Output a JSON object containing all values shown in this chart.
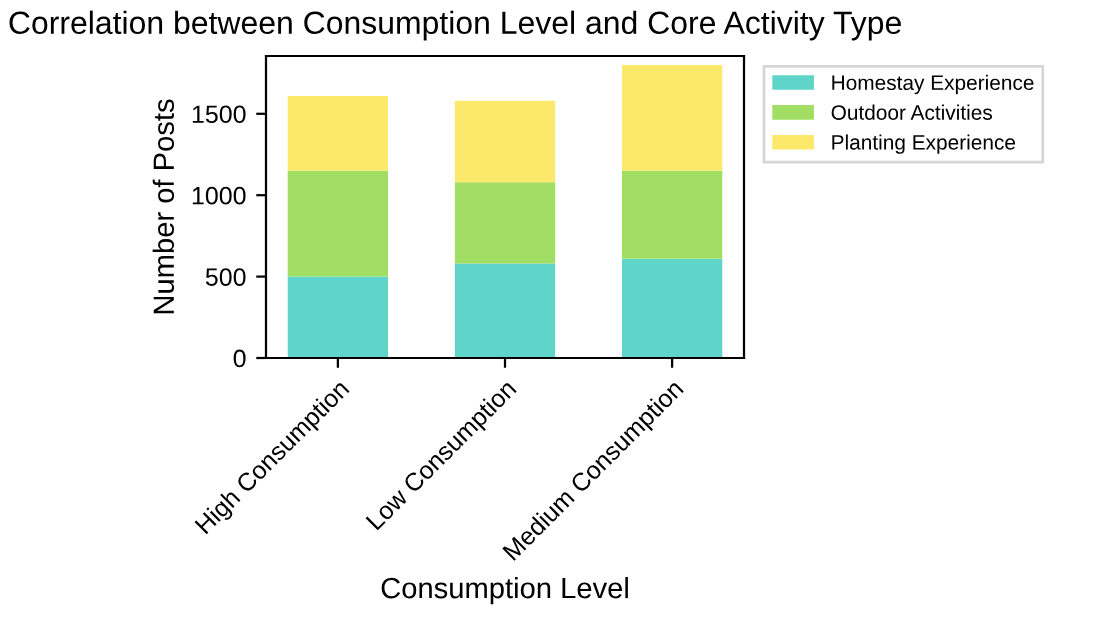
{
  "chart_data": {
    "type": "bar",
    "stacked": true,
    "title": "Correlation between Consumption Level and Core Activity Type",
    "xlabel": "Consumption Level",
    "ylabel": "Number of Posts",
    "categories": [
      "High Consumption",
      "Low Consumption",
      "Medium Consumption"
    ],
    "series": [
      {
        "name": "Homestay Experience",
        "color": "#5fd5c9",
        "values": [
          500,
          580,
          610
        ]
      },
      {
        "name": "Outdoor Activities",
        "color": "#a2de63",
        "values": [
          650,
          500,
          540
        ]
      },
      {
        "name": "Planting Experience",
        "color": "#fce86a",
        "values": [
          460,
          500,
          650
        ]
      }
    ],
    "ylim": [
      0,
      1855
    ],
    "yticks": [
      0,
      500,
      1000,
      1500
    ],
    "grid": false,
    "legend": "top right"
  }
}
